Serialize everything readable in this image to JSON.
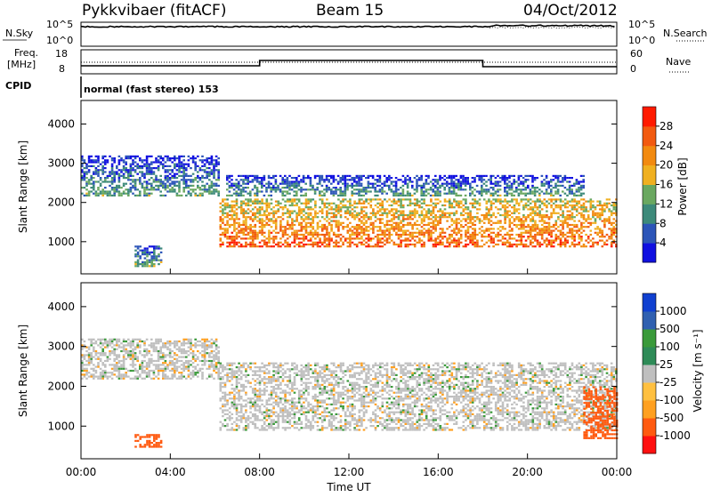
{
  "header": {
    "station": "Pykkvibaer (fitACF)",
    "beam": "Beam 15",
    "date": "04/Oct/2012"
  },
  "top_panels": {
    "nsky_label": "N.Sky",
    "nsky_ticks": [
      "10^5",
      "10^0"
    ],
    "nsearch_label": "N.Search",
    "nsearch_ticks": [
      "10^5",
      "10^0"
    ],
    "freq_label_1": "Freq.",
    "freq_label_2": "[MHz]",
    "freq_ticks": [
      "18",
      "8"
    ],
    "nave_label": "Nave",
    "nave_ticks": [
      "60",
      "0"
    ],
    "cpid_label": "CPID",
    "cpid_text": "normal (fast stereo) 153"
  },
  "colors": {
    "power_scale": [
      "#1010e0",
      "#2c55b8",
      "#3d8a7a",
      "#6aa860",
      "#f0b020",
      "#f28a10",
      "#f25a10",
      "#ff1a00"
    ],
    "velocity_scale": [
      "#ff1010",
      "#ff5a10",
      "#ffa020",
      "#ffc040",
      "#bfbfbf",
      "#2e8b57",
      "#3a9a3a",
      "#3060b0",
      "#1040d0"
    ]
  },
  "chart_data": [
    {
      "type": "heatmap",
      "title": "",
      "ylabel": "Slant Range [km]",
      "ylim": [
        180,
        4600
      ],
      "yticks": [
        "4000",
        "3000",
        "2000",
        "1000"
      ],
      "colorbar_label": "Power [dB]",
      "colorbar_ticks": [
        "28",
        "24",
        "20",
        "16",
        "12",
        "8",
        "4"
      ],
      "colorbar_range": [
        0,
        32
      ],
      "features": [
        {
          "t_start": 0.0,
          "t_end": 6.2,
          "range_low": 2200,
          "range_high": 3200,
          "power": 12
        },
        {
          "t_start": 2.4,
          "t_end": 3.6,
          "range_low": 400,
          "range_high": 900,
          "power": 14
        },
        {
          "t_start": 6.2,
          "t_end": 24.0,
          "range_low": 900,
          "range_high": 2100,
          "power": 26
        },
        {
          "t_start": 6.5,
          "t_end": 22.5,
          "range_low": 2200,
          "range_high": 2700,
          "power": 12
        }
      ]
    },
    {
      "type": "heatmap",
      "title": "",
      "ylabel": "Slant Range [km]",
      "ylim": [
        180,
        4600
      ],
      "yticks": [
        "4000",
        "3000",
        "2000",
        "1000"
      ],
      "colorbar_label": "Velocity [m s⁻¹]",
      "colorbar_ticks": [
        "1000",
        "500",
        "100",
        "25",
        "-25",
        "-100",
        "-500",
        "-1000"
      ],
      "colorbar_range": [
        -1000,
        1000
      ],
      "features": [
        {
          "t_start": 0.0,
          "t_end": 6.2,
          "range_low": 2200,
          "range_high": 3200,
          "velocity": 0
        },
        {
          "t_start": 2.4,
          "t_end": 3.6,
          "range_low": 500,
          "range_high": 800,
          "velocity": -200
        },
        {
          "t_start": 6.2,
          "t_end": 24.0,
          "range_low": 900,
          "range_high": 2600,
          "velocity": 0
        },
        {
          "t_start": 22.5,
          "t_end": 24.0,
          "range_low": 700,
          "range_high": 2000,
          "velocity": -200
        }
      ]
    }
  ],
  "x_axis": {
    "label": "Time UT",
    "ticks": [
      "00:00",
      "04:00",
      "08:00",
      "12:00",
      "16:00",
      "20:00",
      "00:00"
    ],
    "range_hours": [
      0,
      24
    ]
  }
}
